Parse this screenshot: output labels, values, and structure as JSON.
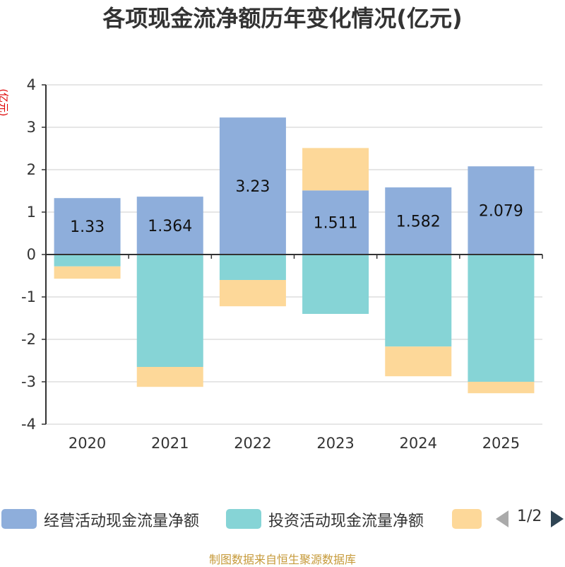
{
  "title": "各项现金流净额历年变化情况(亿元)",
  "source": "制图数据来自恒生聚源数据库",
  "colors": {
    "operating": "#8eaedb",
    "investing": "#86d4d6",
    "financing": "#fdd899",
    "axis": "#333333",
    "grid": "#cccccc",
    "unit": "#dd0000"
  },
  "legend": {
    "items": [
      {
        "label": "经营活动现金流量净额",
        "color": "#8eaedb"
      },
      {
        "label": "投资活动现金流量净额",
        "color": "#86d4d6"
      },
      {
        "label": "",
        "color": "#fdd899"
      }
    ],
    "page": "1/2",
    "prev_icon": "triangle-left",
    "next_icon": "triangle-right"
  },
  "chart_data": {
    "type": "bar",
    "stacked": true,
    "title": "各项现金流净额历年变化情况(亿元)",
    "ylabel": "(亿元)",
    "xlabel": "",
    "ylim": [
      -4,
      4
    ],
    "yticks": [
      4,
      3,
      2,
      1,
      0,
      -1,
      -2,
      -3,
      -4
    ],
    "categories": [
      "2020",
      "2021",
      "2022",
      "2023",
      "2024",
      "2025"
    ],
    "series": [
      {
        "name": "经营活动现金流量净额",
        "values": [
          1.33,
          1.364,
          3.23,
          1.511,
          1.582,
          2.079
        ],
        "labels": [
          "1.33",
          "1.364",
          "3.23",
          "1.511",
          "1.582",
          "2.079"
        ]
      },
      {
        "name": "投资活动现金流量净额",
        "values": [
          -0.28,
          -2.65,
          -0.6,
          -1.4,
          -2.17,
          -3.0
        ]
      },
      {
        "name": "",
        "values": [
          -0.29,
          -0.47,
          -0.62,
          1.0,
          -0.7,
          -0.27
        ]
      }
    ]
  }
}
